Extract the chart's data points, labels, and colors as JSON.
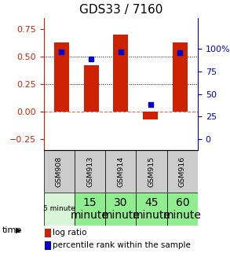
{
  "title": "GDS33 / 7160",
  "samples": [
    "GSM908",
    "GSM913",
    "GSM914",
    "GSM915",
    "GSM916"
  ],
  "log_ratio": [
    0.63,
    0.42,
    0.7,
    -0.07,
    0.63
  ],
  "percentile_rank": [
    96,
    88,
    96,
    38,
    95
  ],
  "bar_color": "#cc2200",
  "dot_color": "#0000cc",
  "ylim_left": [
    -0.35,
    0.85
  ],
  "ylim_right": [
    -11.67,
    133.33
  ],
  "yticks_left": [
    -0.25,
    0,
    0.25,
    0.5,
    0.75
  ],
  "yticks_right": [
    0,
    25,
    50,
    75,
    100
  ],
  "hlines": [
    0.25,
    0.5
  ],
  "zero_line": 0.0,
  "time_labels": [
    "5 minute",
    "15\nminute",
    "30\nminute",
    "45\nminute",
    "60\nminute"
  ],
  "time_colors": [
    "#d8f5d8",
    "#90ee90",
    "#90ee90",
    "#90ee90",
    "#90ee90"
  ],
  "time_font_sizes": [
    6.5,
    10,
    10,
    10,
    10
  ],
  "gsm_bg_color": "#cccccc",
  "legend_log_ratio": "log ratio",
  "legend_percentile": "percentile rank within the sample",
  "bar_width": 0.5
}
